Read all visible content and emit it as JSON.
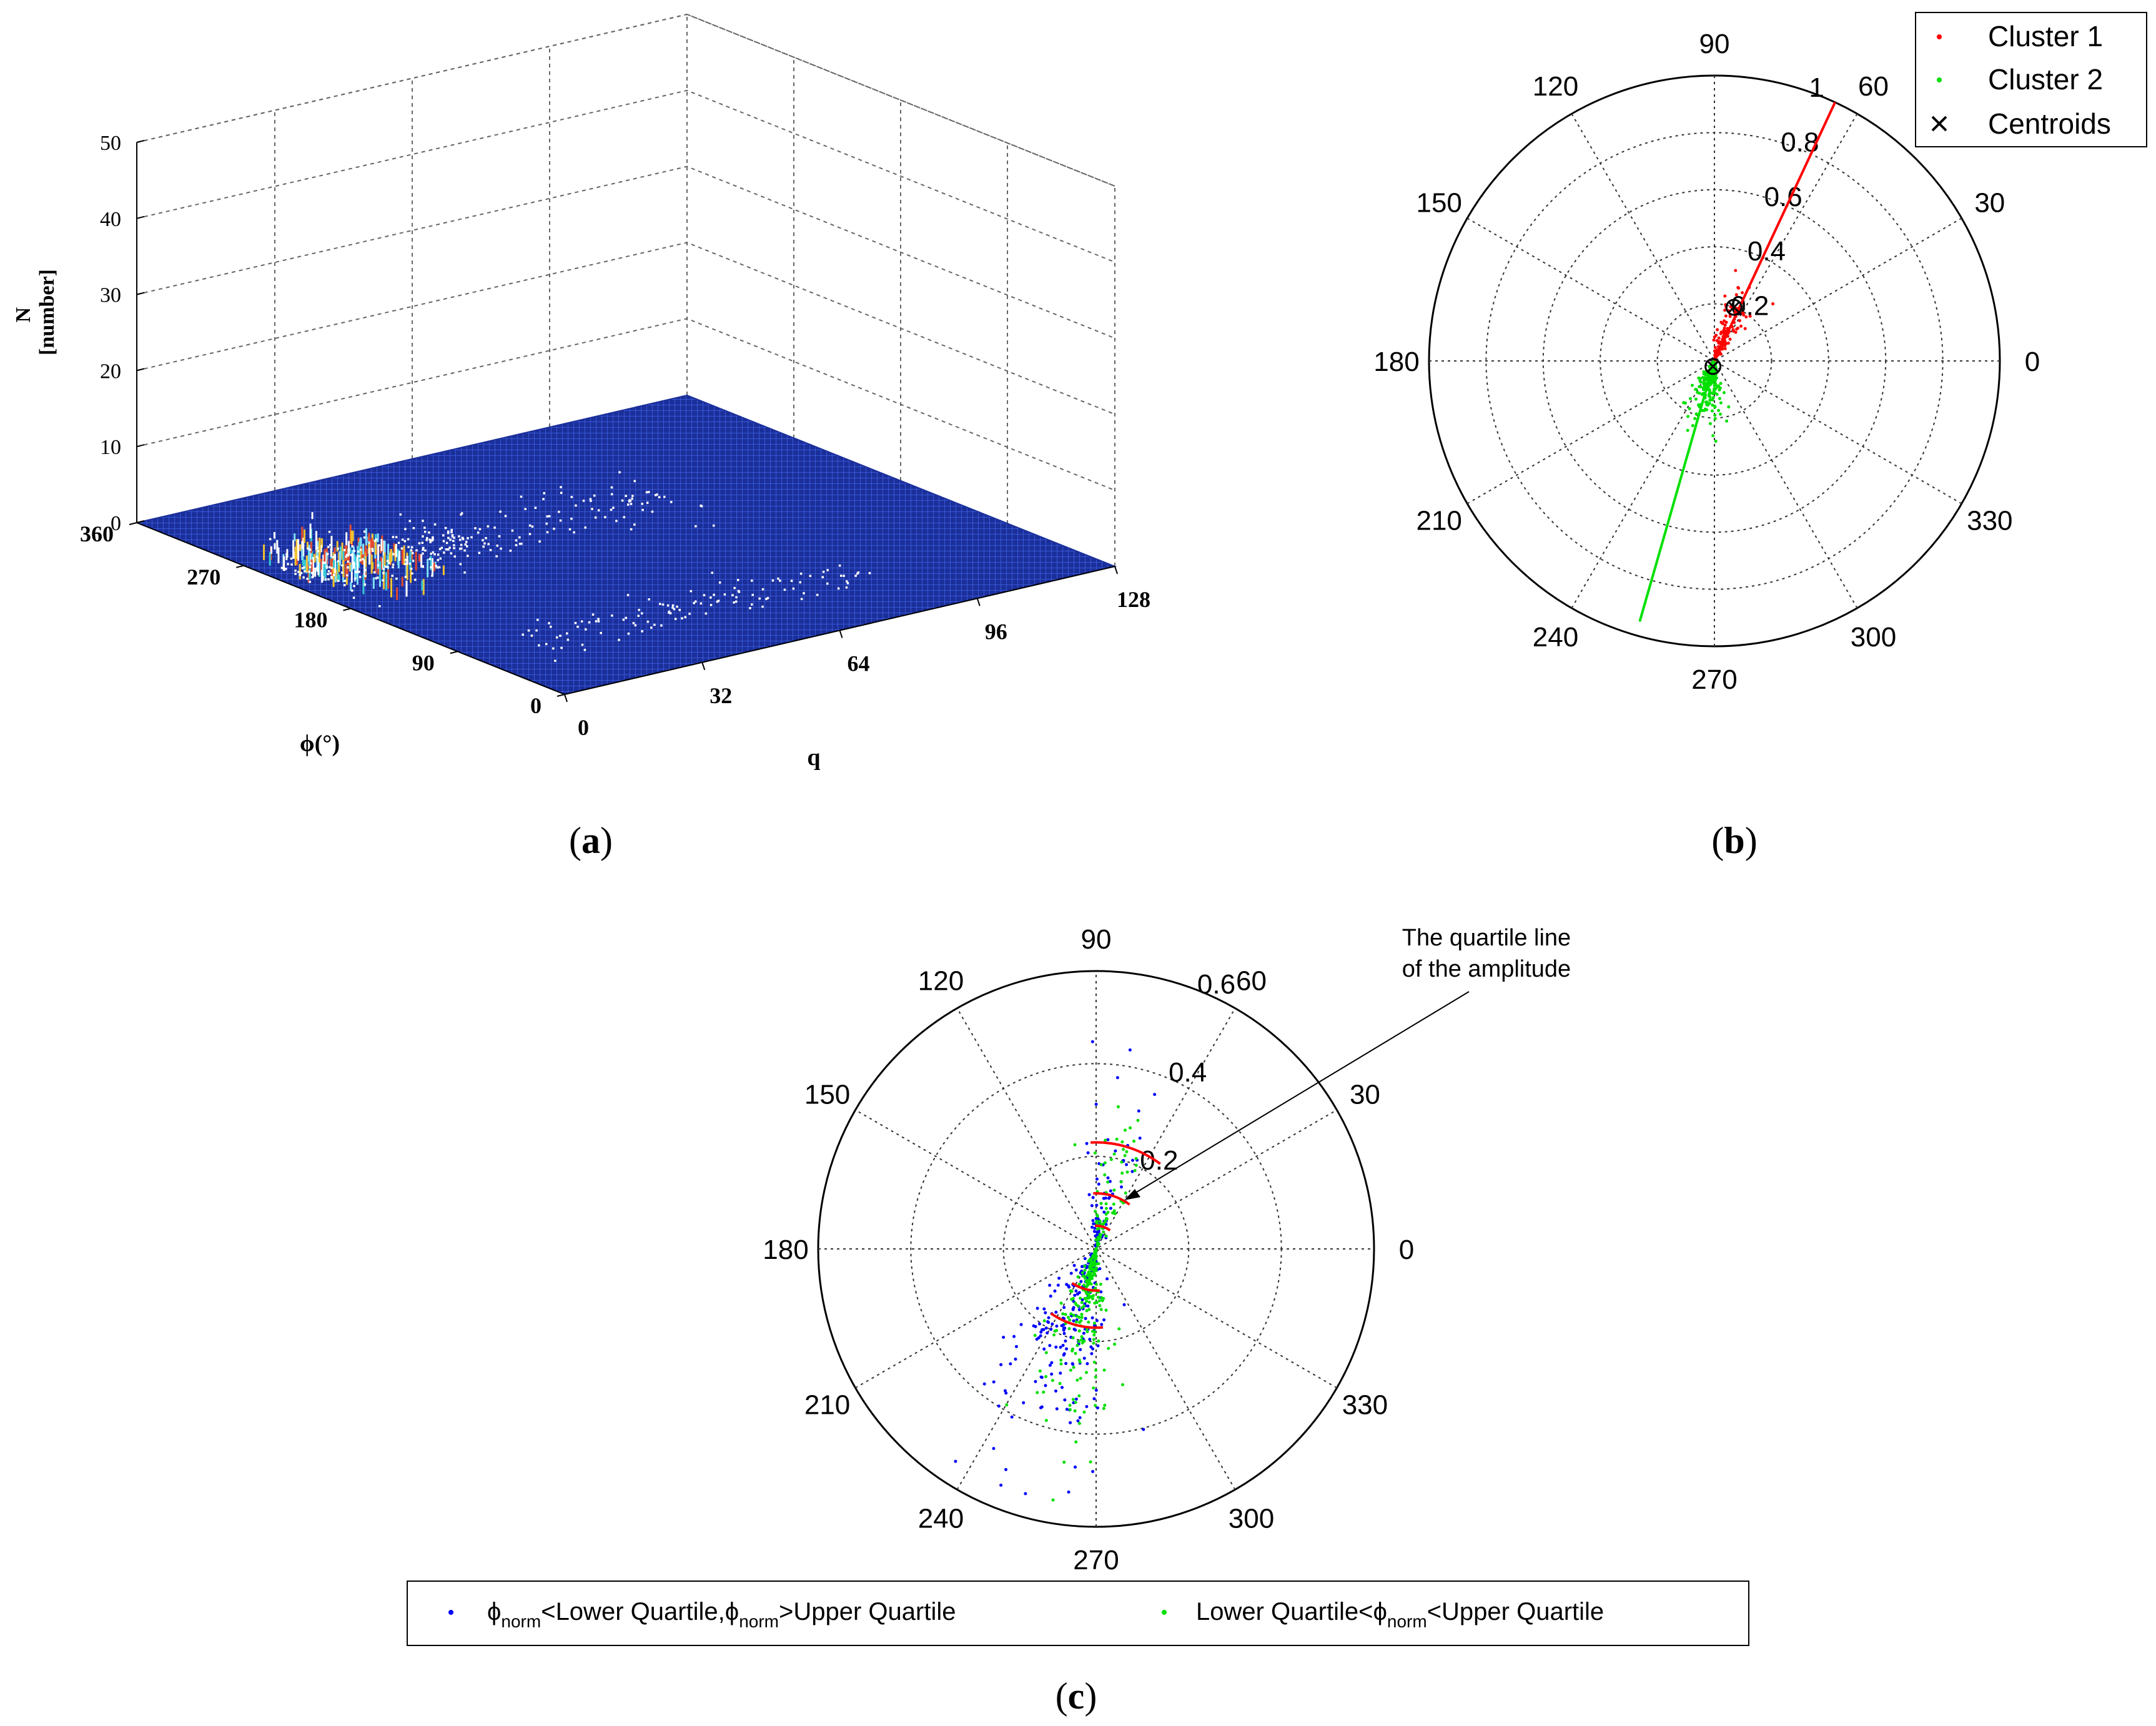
{
  "panel_labels": {
    "a": "a",
    "b": "b",
    "c": "c"
  },
  "chart_data": [
    {
      "id": "a",
      "type": "surface3d",
      "zlabel": "N\n[number]",
      "zlabel_line1": "N",
      "zlabel_line2": "[number]",
      "xlabel": "q",
      "ylabel": "ϕ(°)",
      "x_ticks": [
        0,
        32,
        64,
        96,
        128
      ],
      "y_ticks": [
        0,
        90,
        180,
        270,
        360
      ],
      "z_ticks": [
        0,
        10,
        20,
        30,
        40,
        50
      ],
      "xlim": [
        0,
        128
      ],
      "ylim": [
        0,
        360
      ],
      "zlim": [
        0,
        50
      ],
      "colors": {
        "surface": "#1b2f9a",
        "mesh": "#3a5be0",
        "hot1": "#e34b2f",
        "hot2": "#f2c230",
        "hot3": "#35c9d8"
      }
    },
    {
      "id": "b",
      "type": "polar-scatter",
      "angle_ticks": [
        "0",
        "30",
        "60",
        "90",
        "120",
        "150",
        "180",
        "210",
        "240",
        "270",
        "300",
        "330"
      ],
      "angle_values": [
        0,
        30,
        60,
        90,
        120,
        150,
        180,
        210,
        240,
        270,
        300,
        330
      ],
      "radial_ticks": [
        "0.2",
        "0.4",
        "0.6",
        "0.8",
        "1"
      ],
      "rlim": [
        0,
        1
      ],
      "legend": [
        "Cluster 1",
        "Cluster 2",
        "Centroids"
      ],
      "series": [
        {
          "name": "Cluster 1",
          "color": "#ff0000",
          "marker": "dot",
          "angle_center": 68,
          "r_range": [
            0.0,
            0.45
          ],
          "count": 120
        },
        {
          "name": "Cluster 2",
          "color": "#00e000",
          "marker": "dot",
          "angle_center": 258,
          "r_range": [
            0.0,
            0.35
          ],
          "count": 260
        },
        {
          "name": "Centroids",
          "color": "#000000",
          "marker": "x",
          "points": [
            [
              70,
              0.2
            ],
            [
              255,
              0.02
            ]
          ]
        }
      ],
      "lines": [
        {
          "series": "Cluster 1",
          "color": "#ff0000",
          "angle": 65,
          "r": 1.0
        },
        {
          "series": "Cluster 2",
          "color": "#00e000",
          "angle": 254,
          "r": 0.95
        }
      ]
    },
    {
      "id": "c",
      "type": "polar-scatter",
      "angle_ticks": [
        "0",
        "30",
        "60",
        "90",
        "120",
        "150",
        "180",
        "210",
        "240",
        "270",
        "300",
        "330"
      ],
      "angle_values": [
        0,
        30,
        60,
        90,
        120,
        150,
        180,
        210,
        240,
        270,
        300,
        330
      ],
      "radial_ticks": [
        "0.2",
        "0.4",
        "0.6"
      ],
      "rlim": [
        0,
        0.6
      ],
      "annotation_line1": "The quartile line",
      "annotation_line2": "of the amplitude",
      "legend": [
        {
          "name": "ϕnorm<Lower Quartile,ϕnorm>Upper Quartile",
          "p1": "ϕ",
          "s1": "norm",
          "p2": "<Lower Quartile,ϕ",
          "s2": "norm",
          "p3": ">Upper Quartile",
          "color": "#0000ff"
        },
        {
          "name": "Lower Quartile<ϕnorm<Upper Quartile",
          "p1": "Lower Quartile<ϕ",
          "s1": "norm",
          "p2": "<Upper Quartile",
          "color": "#00e000"
        }
      ],
      "series": [
        {
          "name": "outside quartiles",
          "color": "#0000ff",
          "count": 300
        },
        {
          "name": "inside quartiles",
          "color": "#00e000",
          "count": 300
        }
      ],
      "quartile_arcs": [
        {
          "angle_center": 73,
          "span": 40,
          "r": 0.23
        },
        {
          "angle_center": 73,
          "span": 40,
          "r": 0.12
        },
        {
          "angle_center": 73,
          "span": 40,
          "r": 0.05
        },
        {
          "angle_center": 255,
          "span": 40,
          "r": 0.09
        },
        {
          "angle_center": 255,
          "span": 40,
          "r": 0.17
        }
      ]
    }
  ]
}
